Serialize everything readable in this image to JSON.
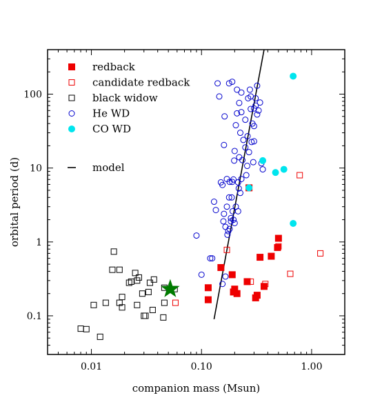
{
  "chart_data": {
    "type": "scatter",
    "xlabel": "companion mass (Msun)",
    "ylabel": "orbital period (d)",
    "xscale": "log",
    "yscale": "log",
    "xlim": [
      0.004,
      2.0
    ],
    "ylim": [
      0.03,
      400
    ],
    "x_ticks": [
      {
        "value": 0.01,
        "label": "0.01"
      },
      {
        "value": 0.1,
        "label": "0.10"
      },
      {
        "value": 1.0,
        "label": "1.00"
      }
    ],
    "y_ticks": [
      {
        "value": 0.1,
        "label": "0.1"
      },
      {
        "value": 1,
        "label": "1"
      },
      {
        "value": 10,
        "label": "10"
      },
      {
        "value": 100,
        "label": "100"
      }
    ],
    "legend_position": "upper-left",
    "series": [
      {
        "name": "redback",
        "marker": "filled-square",
        "color": "#ee0000",
        "points": [
          [
            0.115,
            0.24
          ],
          [
            0.115,
            0.165
          ],
          [
            0.15,
            0.45
          ],
          [
            0.19,
            0.36
          ],
          [
            0.195,
            0.21
          ],
          [
            0.2,
            0.23
          ],
          [
            0.21,
            0.2
          ],
          [
            0.26,
            0.29
          ],
          [
            0.27,
            5.4
          ],
          [
            0.31,
            0.175
          ],
          [
            0.32,
            0.19
          ],
          [
            0.34,
            0.62
          ],
          [
            0.37,
            0.25
          ],
          [
            0.43,
            0.64
          ],
          [
            0.5,
            1.12
          ],
          [
            0.49,
            0.84
          ]
        ]
      },
      {
        "name": "candidate redback",
        "marker": "open-square",
        "color": "#ee0000",
        "points": [
          [
            0.058,
            0.15
          ],
          [
            0.17,
            0.78
          ],
          [
            0.28,
            0.29
          ],
          [
            0.38,
            0.27
          ],
          [
            0.5,
            0.87
          ],
          [
            0.64,
            0.37
          ],
          [
            0.78,
            8.0
          ],
          [
            1.2,
            0.7
          ]
        ]
      },
      {
        "name": "black widow",
        "marker": "open-square",
        "color": "#000000",
        "points": [
          [
            0.008,
            0.067
          ],
          [
            0.009,
            0.066
          ],
          [
            0.0105,
            0.14
          ],
          [
            0.012,
            0.052
          ],
          [
            0.0135,
            0.15
          ],
          [
            0.0155,
            0.42
          ],
          [
            0.016,
            0.74
          ],
          [
            0.018,
            0.42
          ],
          [
            0.018,
            0.15
          ],
          [
            0.019,
            0.18
          ],
          [
            0.019,
            0.13
          ],
          [
            0.022,
            0.28
          ],
          [
            0.023,
            0.29
          ],
          [
            0.025,
            0.38
          ],
          [
            0.026,
            0.3
          ],
          [
            0.026,
            0.14
          ],
          [
            0.027,
            0.33
          ],
          [
            0.029,
            0.2
          ],
          [
            0.03,
            0.1
          ],
          [
            0.031,
            0.1
          ],
          [
            0.033,
            0.21
          ],
          [
            0.034,
            0.28
          ],
          [
            0.037,
            0.31
          ],
          [
            0.036,
            0.12
          ],
          [
            0.045,
            0.095
          ],
          [
            0.046,
            0.15
          ],
          [
            0.046,
            0.24
          ],
          [
            0.057,
            0.23
          ]
        ]
      },
      {
        "name": "He WD",
        "marker": "open-circle",
        "color": "#0000cc",
        "points": [
          [
            0.09,
            1.22
          ],
          [
            0.1,
            0.36
          ],
          [
            0.12,
            0.6
          ],
          [
            0.125,
            0.6
          ],
          [
            0.13,
            3.5
          ],
          [
            0.135,
            2.7
          ],
          [
            0.14,
            140
          ],
          [
            0.145,
            93
          ],
          [
            0.15,
            6.4
          ],
          [
            0.155,
            5.9
          ],
          [
            0.155,
            0.27
          ],
          [
            0.158,
            1.9
          ],
          [
            0.16,
            2.4
          ],
          [
            0.16,
            20.5
          ],
          [
            0.162,
            50
          ],
          [
            0.165,
            1.6
          ],
          [
            0.165,
            0.34
          ],
          [
            0.17,
            7.1
          ],
          [
            0.17,
            3
          ],
          [
            0.172,
            1.25
          ],
          [
            0.175,
            1.4
          ],
          [
            0.178,
            4
          ],
          [
            0.178,
            140
          ],
          [
            0.18,
            6.5
          ],
          [
            0.18,
            1.5
          ],
          [
            0.185,
            1.9
          ],
          [
            0.185,
            2.1
          ],
          [
            0.188,
            4
          ],
          [
            0.19,
            6.5
          ],
          [
            0.19,
            147
          ],
          [
            0.192,
            2.6
          ],
          [
            0.195,
            7
          ],
          [
            0.195,
            2
          ],
          [
            0.198,
            12.6
          ],
          [
            0.2,
            17
          ],
          [
            0.2,
            1.8
          ],
          [
            0.205,
            38
          ],
          [
            0.205,
            3
          ],
          [
            0.21,
            55
          ],
          [
            0.21,
            115
          ],
          [
            0.215,
            2.6
          ],
          [
            0.215,
            6.4
          ],
          [
            0.218,
            5.3
          ],
          [
            0.22,
            76
          ],
          [
            0.22,
            14
          ],
          [
            0.225,
            30
          ],
          [
            0.225,
            4.6
          ],
          [
            0.23,
            7.1
          ],
          [
            0.23,
            57
          ],
          [
            0.23,
            105
          ],
          [
            0.235,
            12.8
          ],
          [
            0.24,
            24
          ],
          [
            0.25,
            19
          ],
          [
            0.25,
            45
          ],
          [
            0.255,
            8
          ],
          [
            0.26,
            10.7
          ],
          [
            0.262,
            27
          ],
          [
            0.265,
            88
          ],
          [
            0.27,
            16.4
          ],
          [
            0.275,
            115
          ],
          [
            0.28,
            93
          ],
          [
            0.28,
            63
          ],
          [
            0.285,
            22.5
          ],
          [
            0.29,
            40
          ],
          [
            0.295,
            12
          ],
          [
            0.3,
            37
          ],
          [
            0.3,
            64
          ],
          [
            0.3,
            23
          ],
          [
            0.31,
            88
          ],
          [
            0.31,
            70
          ],
          [
            0.32,
            53
          ],
          [
            0.32,
            130
          ],
          [
            0.33,
            60
          ],
          [
            0.34,
            77
          ],
          [
            0.35,
            11.6
          ],
          [
            0.36,
            9.6
          ]
        ]
      },
      {
        "name": "CO WD",
        "marker": "filled-circle",
        "color": "#00e5ee",
        "points": [
          [
            0.27,
            5.4
          ],
          [
            0.36,
            12.6
          ],
          [
            0.47,
            8.7
          ],
          [
            0.56,
            9.6
          ],
          [
            0.68,
            175
          ],
          [
            0.68,
            1.78
          ]
        ]
      }
    ],
    "lines": [
      {
        "name": "model",
        "color": "#000000",
        "points": [
          [
            0.13,
            0.09
          ],
          [
            0.37,
            400
          ]
        ]
      }
    ],
    "star_marker": {
      "color": "#007b00",
      "x": 0.052,
      "y": 0.23
    }
  }
}
